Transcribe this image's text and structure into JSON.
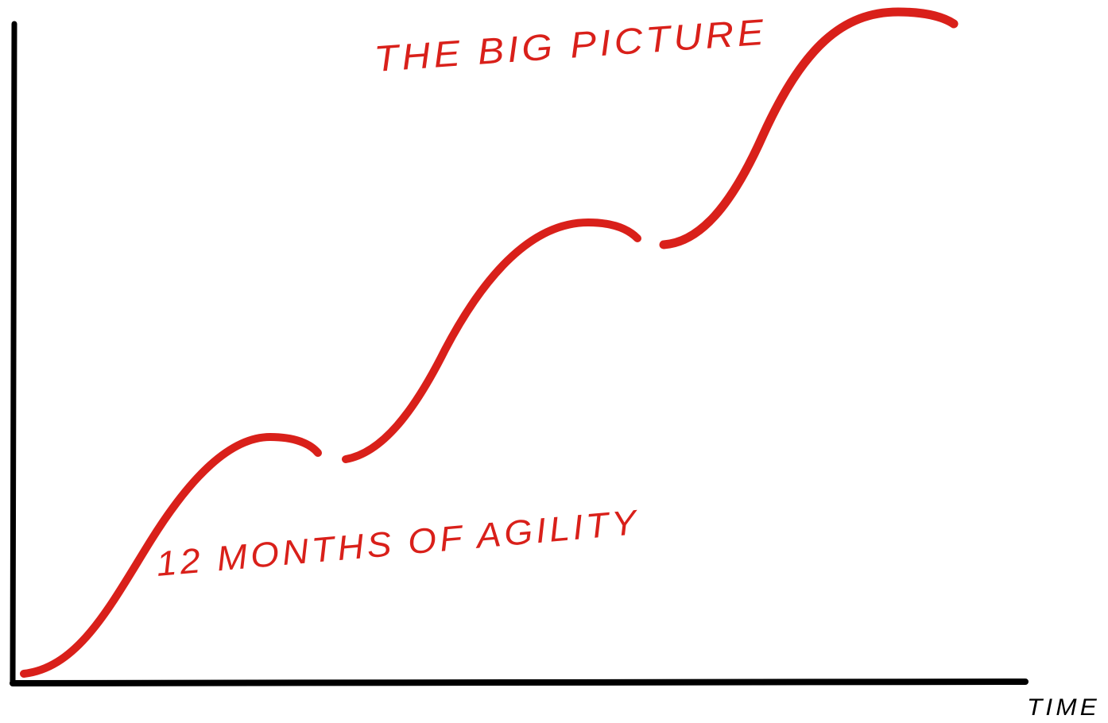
{
  "title": "THE BIG PICTURE",
  "annotation": "12 MONTHS OF AGILITY",
  "x_axis_label": "TIME"
}
